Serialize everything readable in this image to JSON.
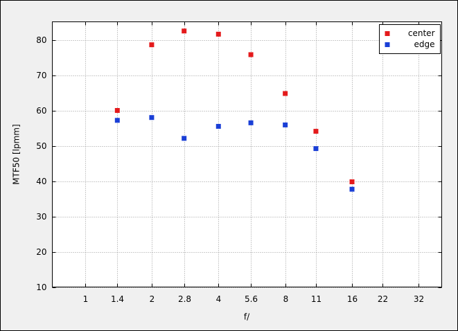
{
  "chart_data": {
    "type": "scatter",
    "x_label": "f/",
    "y_label": "MTF50 [lpmm]",
    "xscale": "log",
    "xlim": [
      0.713,
      40.6
    ],
    "xticks": [
      1,
      1.4,
      2,
      2.8,
      4,
      5.6,
      8,
      11,
      16,
      22,
      32
    ],
    "ylim": [
      10,
      85.1
    ],
    "yticks": [
      10,
      20,
      30,
      40,
      50,
      60,
      70,
      80
    ],
    "grid": true,
    "legend": "upper right",
    "series": [
      {
        "name": "center",
        "color": "#e41a1c",
        "x": [
          1.4,
          2,
          2.8,
          4,
          5.6,
          8,
          11,
          16
        ],
        "values": [
          60,
          78.6,
          82.5,
          81.6,
          75.8,
          64.8,
          54.1,
          39.8
        ]
      },
      {
        "name": "edge",
        "color": "#1a3fd6",
        "x": [
          1.4,
          2,
          2.8,
          4,
          5.6,
          8,
          11,
          16
        ],
        "values": [
          57.2,
          58,
          52.1,
          55.5,
          56.5,
          55.9,
          49.2,
          37.7
        ]
      }
    ]
  }
}
